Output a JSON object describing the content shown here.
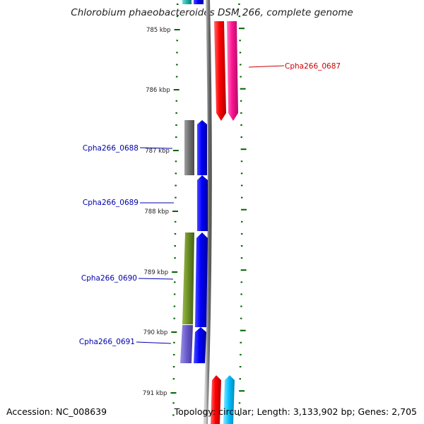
{
  "title": "Chlorobium phaeobacteroides DSM 266, complete genome",
  "footer": {
    "accession": "Accession: NC_008639",
    "summary": "Topology: circular; Length: 3,133,902 bp; Genes: 2,705"
  },
  "colors": {
    "tick": "#006400",
    "backbone": "#808080",
    "forward_cds": "#ff0000",
    "forward_feature": "#ff1493",
    "reverse_cds": "#0000ff",
    "label_forward": "#cc0000",
    "label_reverse": "#0000aa"
  },
  "kbp_labels": [
    "785 kbp",
    "786 kbp",
    "787 kbp",
    "788 kbp",
    "789 kbp",
    "790 kbp",
    "791 kbp"
  ],
  "genes": [
    {
      "name": "Cpha266_0687",
      "strand": "+",
      "color": "#cc0000"
    },
    {
      "name": "Cpha266_0688",
      "strand": "-",
      "color": "#0000aa"
    },
    {
      "name": "Cpha266_0689",
      "strand": "-",
      "color": "#0000aa"
    },
    {
      "name": "Cpha266_0690",
      "strand": "-",
      "color": "#0000aa"
    },
    {
      "name": "Cpha266_0691",
      "strand": "-",
      "color": "#0000aa"
    }
  ]
}
